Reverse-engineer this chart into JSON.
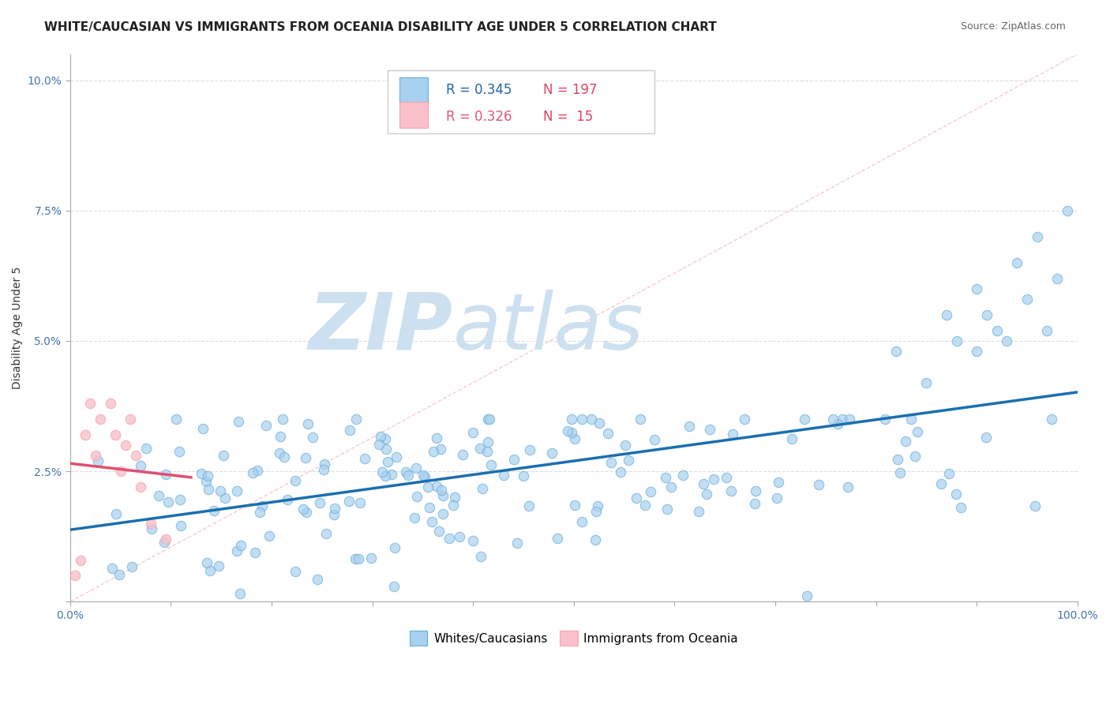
{
  "title": "WHITE/CAUCASIAN VS IMMIGRANTS FROM OCEANIA DISABILITY AGE UNDER 5 CORRELATION CHART",
  "source": "Source: ZipAtlas.com",
  "ylabel": "Disability Age Under 5",
  "xlim": [
    0,
    1.0
  ],
  "ylim": [
    0,
    0.105
  ],
  "yticks": [
    0.0,
    0.025,
    0.05,
    0.075,
    0.1
  ],
  "ytick_labels": [
    "",
    "2.5%",
    "5.0%",
    "7.5%",
    "10.0%"
  ],
  "blue_scatter_color": "#a8d0f0",
  "blue_edge_color": "#6aaed6",
  "pink_scatter_color": "#f9c0cb",
  "pink_edge_color": "#f4a6b0",
  "line_blue_color": "#1a6faf",
  "line_pink_color": "#e05070",
  "diag_color": "#d0d0d0",
  "watermark_color": "#cce0f0",
  "grid_color": "#dddddd",
  "title_color": "#222222",
  "source_color": "#666666",
  "tick_color": "#4477aa",
  "ylabel_color": "#333333",
  "title_fontsize": 11,
  "axis_label_fontsize": 10,
  "tick_fontsize": 10,
  "legend_fontsize": 12
}
